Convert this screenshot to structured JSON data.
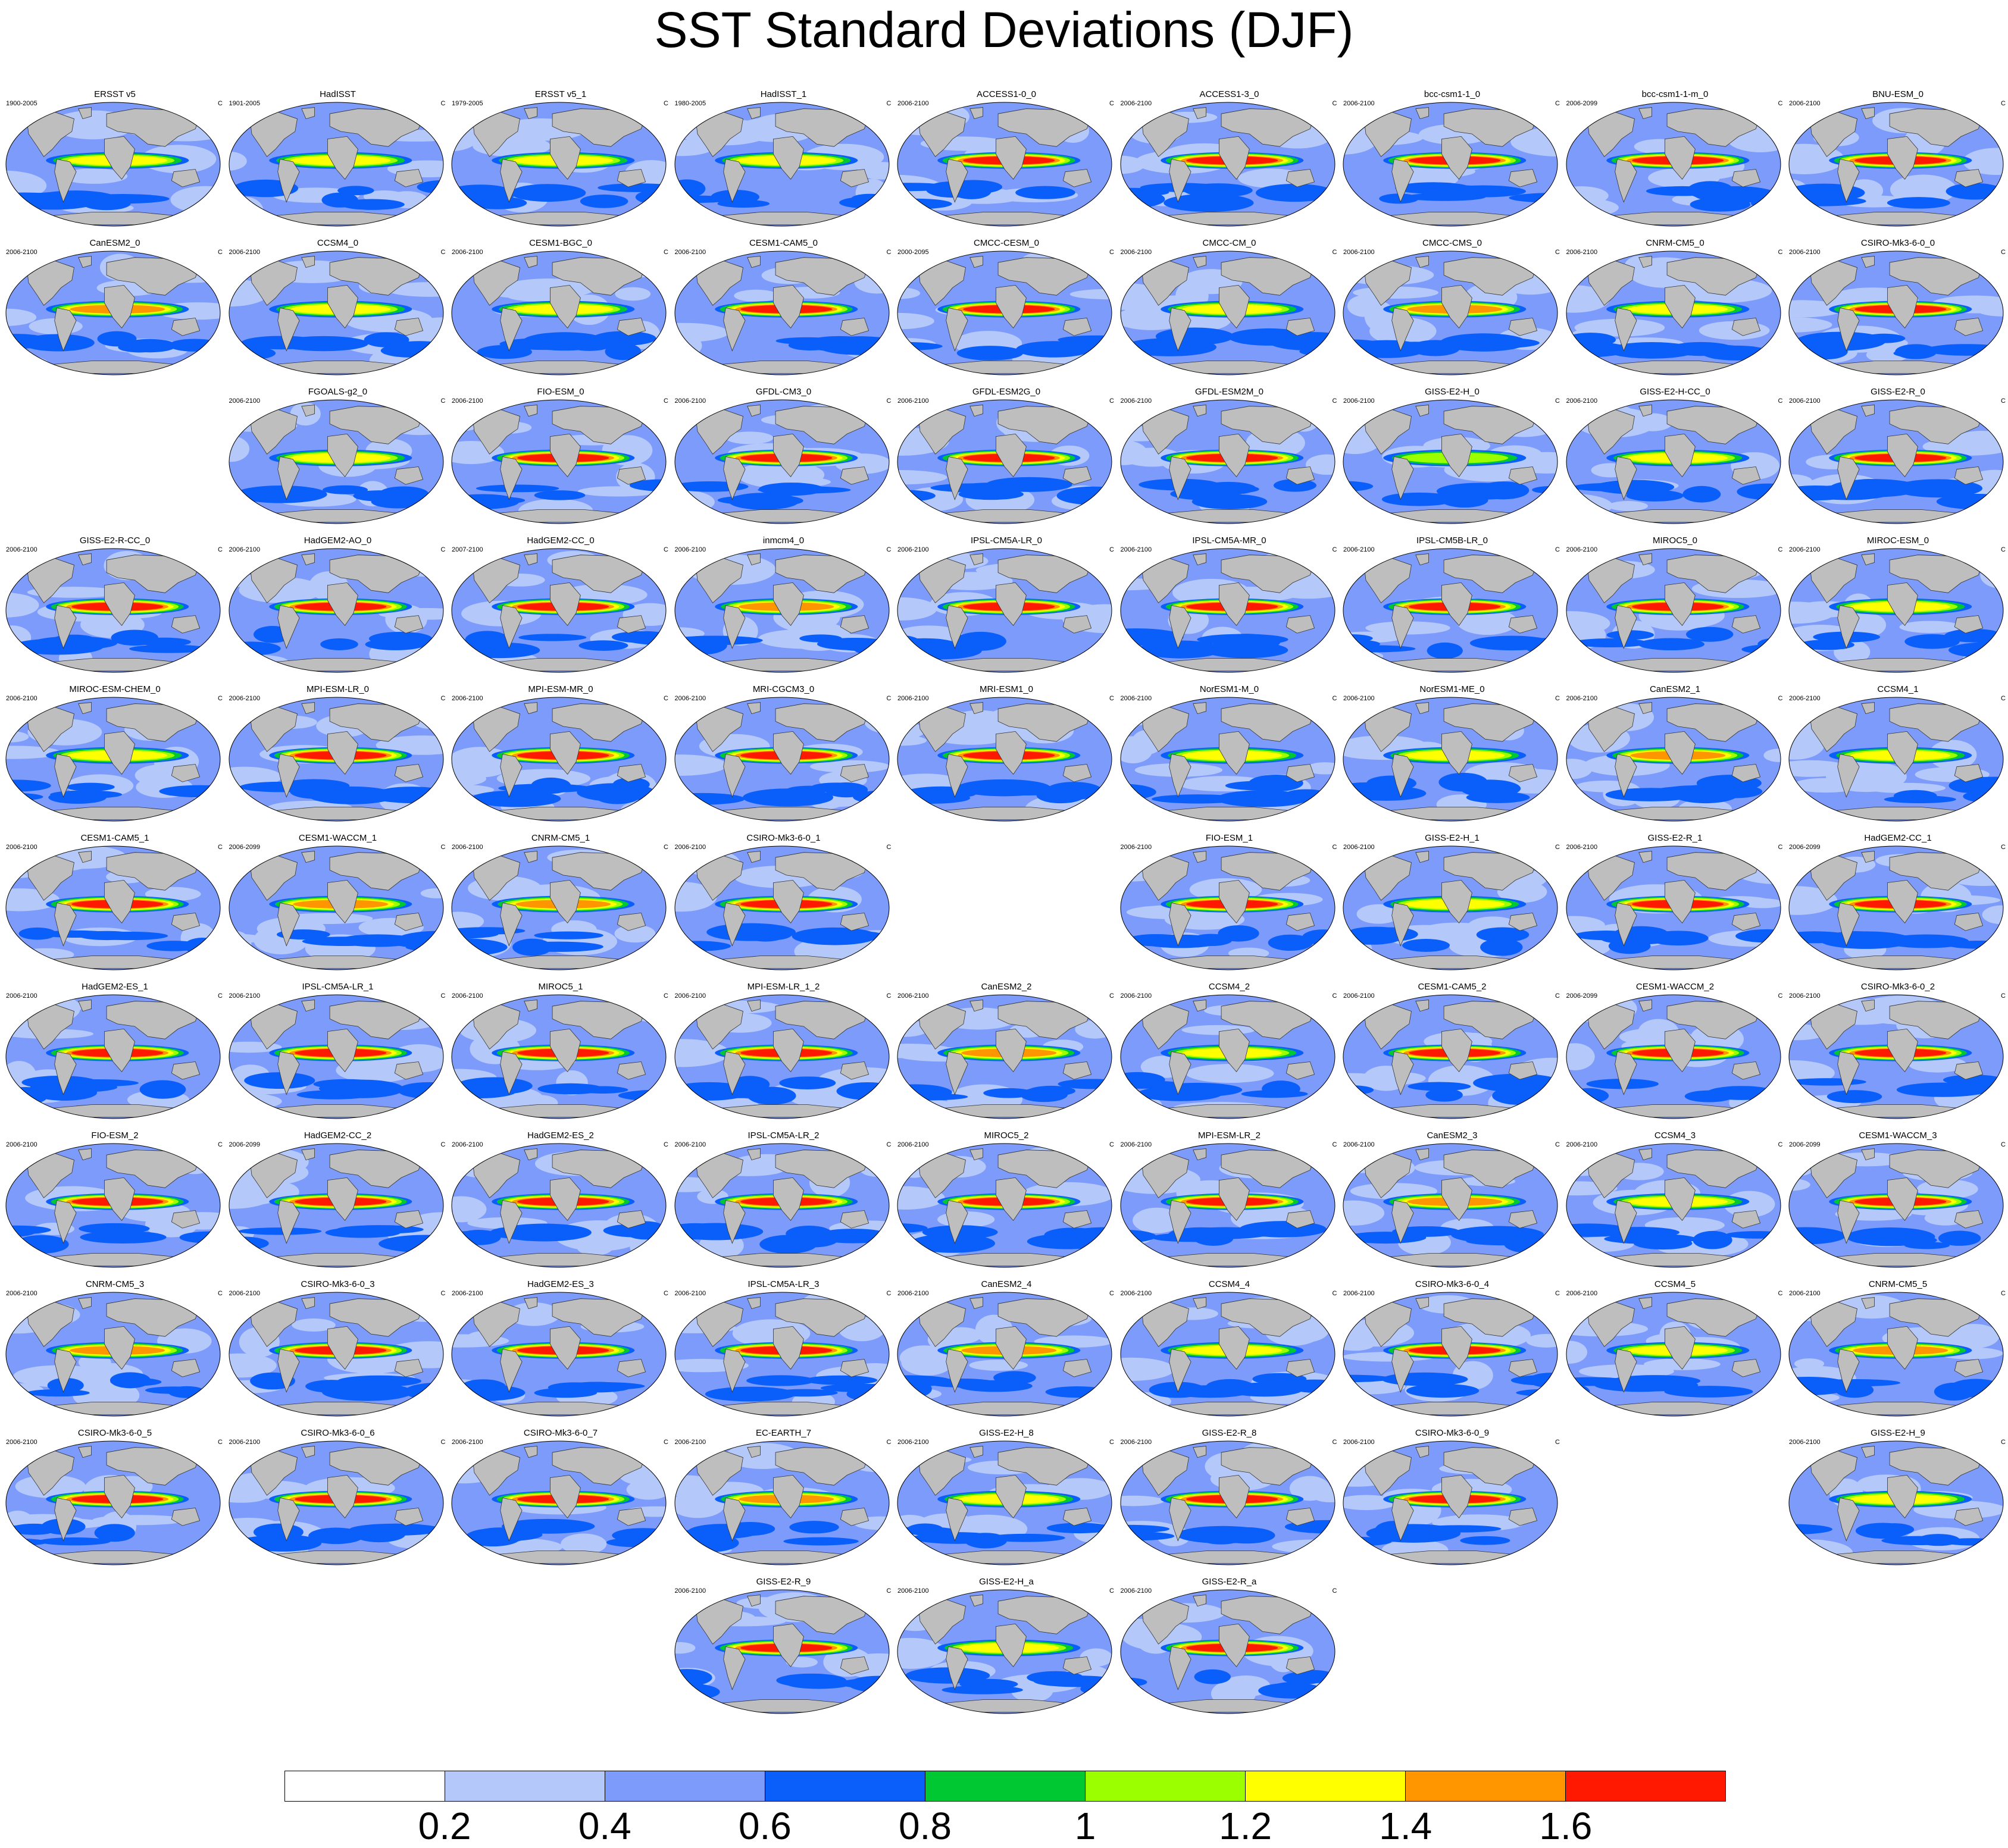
{
  "title": "SST Standard Deviations (DJF)",
  "unit_label": "C",
  "chart_data": {
    "type": "heatmap",
    "title": "SST Standard Deviations (DJF)",
    "panel_kind": "global SST standard deviation map",
    "colorbar": {
      "levels": [
        0.2,
        0.4,
        0.6,
        0.8,
        1,
        1.2,
        1.4,
        1.6
      ],
      "tick_labels": [
        "0.2",
        "0.4",
        "0.6",
        "0.8",
        "1",
        "1.2",
        "1.4",
        "1.6"
      ],
      "colors": [
        "#ffffff",
        "#b4c8fa",
        "#7d9bfa",
        "#0a5ffa",
        "#00c832",
        "#9bff00",
        "#ffff00",
        "#ff9600",
        "#ff1900"
      ]
    },
    "panels": [
      {
        "row": 0,
        "col": 0,
        "name": "ERSST v5",
        "years": "1900-2005",
        "peak": 1.2
      },
      {
        "row": 0,
        "col": 1,
        "name": "HadISST",
        "years": "1901-2005",
        "peak": 1.2
      },
      {
        "row": 0,
        "col": 2,
        "name": "ERSST v5_1",
        "years": "1979-2005",
        "peak": 1.2
      },
      {
        "row": 0,
        "col": 3,
        "name": "HadISST_1",
        "years": "1980-2005",
        "peak": 1.2
      },
      {
        "row": 0,
        "col": 4,
        "name": "ACCESS1-0_0",
        "years": "2006-2100",
        "peak": 1.6
      },
      {
        "row": 0,
        "col": 5,
        "name": "ACCESS1-3_0",
        "years": "2006-2100",
        "peak": 1.6
      },
      {
        "row": 0,
        "col": 6,
        "name": "bcc-csm1-1_0",
        "years": "2006-2100",
        "peak": 1.6
      },
      {
        "row": 0,
        "col": 7,
        "name": "bcc-csm1-1-m_0",
        "years": "2006-2099",
        "peak": 1.6
      },
      {
        "row": 0,
        "col": 8,
        "name": "BNU-ESM_0",
        "years": "2006-2100",
        "peak": 1.6
      },
      {
        "row": 1,
        "col": 0,
        "name": "CanESM2_0",
        "years": "2006-2100",
        "peak": 1.4
      },
      {
        "row": 1,
        "col": 1,
        "name": "CCSM4_0",
        "years": "2006-2100",
        "peak": 1.2
      },
      {
        "row": 1,
        "col": 2,
        "name": "CESM1-BGC_0",
        "years": "2006-2100",
        "peak": 1.2
      },
      {
        "row": 1,
        "col": 3,
        "name": "CESM1-CAM5_0",
        "years": "2006-2100",
        "peak": 1.6
      },
      {
        "row": 1,
        "col": 4,
        "name": "CMCC-CESM_0",
        "years": "2000-2095",
        "peak": 1.6
      },
      {
        "row": 1,
        "col": 5,
        "name": "CMCC-CM_0",
        "years": "2006-2100",
        "peak": 1.2
      },
      {
        "row": 1,
        "col": 6,
        "name": "CMCC-CMS_0",
        "years": "2006-2100",
        "peak": 1.4
      },
      {
        "row": 1,
        "col": 7,
        "name": "CNRM-CM5_0",
        "years": "2006-2100",
        "peak": 1.2
      },
      {
        "row": 1,
        "col": 8,
        "name": "CSIRO-Mk3-6-0_0",
        "years": "2006-2100",
        "peak": 1.6
      },
      {
        "row": 2,
        "col": 1,
        "name": "FGOALS-g2_0",
        "years": "2006-2100",
        "peak": 1.2
      },
      {
        "row": 2,
        "col": 2,
        "name": "FIO-ESM_0",
        "years": "2006-2100",
        "peak": 1.6
      },
      {
        "row": 2,
        "col": 3,
        "name": "GFDL-CM3_0",
        "years": "2006-2100",
        "peak": 1.6
      },
      {
        "row": 2,
        "col": 4,
        "name": "GFDL-ESM2G_0",
        "years": "2006-2100",
        "peak": 1.6
      },
      {
        "row": 2,
        "col": 5,
        "name": "GFDL-ESM2M_0",
        "years": "2006-2100",
        "peak": 1.6
      },
      {
        "row": 2,
        "col": 6,
        "name": "GISS-E2-H_0",
        "years": "2006-2100",
        "peak": 1.0
      },
      {
        "row": 2,
        "col": 7,
        "name": "GISS-E2-H-CC_0",
        "years": "2006-2100",
        "peak": 1.2
      },
      {
        "row": 2,
        "col": 8,
        "name": "GISS-E2-R_0",
        "years": "2006-2100",
        "peak": 1.6
      },
      {
        "row": 3,
        "col": 0,
        "name": "GISS-E2-R-CC_0",
        "years": "2006-2100",
        "peak": 1.6
      },
      {
        "row": 3,
        "col": 1,
        "name": "HadGEM2-AO_0",
        "years": "2006-2100",
        "peak": 1.6
      },
      {
        "row": 3,
        "col": 2,
        "name": "HadGEM2-CC_0",
        "years": "2007-2100",
        "peak": 1.6
      },
      {
        "row": 3,
        "col": 3,
        "name": "inmcm4_0",
        "years": "2006-2100",
        "peak": 1.4
      },
      {
        "row": 3,
        "col": 4,
        "name": "IPSL-CM5A-LR_0",
        "years": "2006-2100",
        "peak": 1.6
      },
      {
        "row": 3,
        "col": 5,
        "name": "IPSL-CM5A-MR_0",
        "years": "2006-2100",
        "peak": 1.6
      },
      {
        "row": 3,
        "col": 6,
        "name": "IPSL-CM5B-LR_0",
        "years": "2006-2100",
        "peak": 1.6
      },
      {
        "row": 3,
        "col": 7,
        "name": "MIROC5_0",
        "years": "2006-2100",
        "peak": 1.6
      },
      {
        "row": 3,
        "col": 8,
        "name": "MIROC-ESM_0",
        "years": "2006-2100",
        "peak": 1.2
      },
      {
        "row": 4,
        "col": 0,
        "name": "MIROC-ESM-CHEM_0",
        "years": "2006-2100",
        "peak": 1.2
      },
      {
        "row": 4,
        "col": 1,
        "name": "MPI-ESM-LR_0",
        "years": "2006-2100",
        "peak": 1.6
      },
      {
        "row": 4,
        "col": 2,
        "name": "MPI-ESM-MR_0",
        "years": "2006-2100",
        "peak": 1.6
      },
      {
        "row": 4,
        "col": 3,
        "name": "MRI-CGCM3_0",
        "years": "2006-2100",
        "peak": 1.6
      },
      {
        "row": 4,
        "col": 4,
        "name": "MRI-ESM1_0",
        "years": "2006-2100",
        "peak": 1.6
      },
      {
        "row": 4,
        "col": 5,
        "name": "NorESM1-M_0",
        "years": "2006-2100",
        "peak": 1.2
      },
      {
        "row": 4,
        "col": 6,
        "name": "NorESM1-ME_0",
        "years": "2006-2100",
        "peak": 1.2
      },
      {
        "row": 4,
        "col": 7,
        "name": "CanESM2_1",
        "years": "2006-2100",
        "peak": 1.4
      },
      {
        "row": 4,
        "col": 8,
        "name": "CCSM4_1",
        "years": "2006-2100",
        "peak": 1.2
      },
      {
        "row": 5,
        "col": 0,
        "name": "CESM1-CAM5_1",
        "years": "2006-2100",
        "peak": 1.6
      },
      {
        "row": 5,
        "col": 1,
        "name": "CESM1-WACCM_1",
        "years": "2006-2099",
        "peak": 1.4
      },
      {
        "row": 5,
        "col": 2,
        "name": "CNRM-CM5_1",
        "years": "2006-2100",
        "peak": 1.4
      },
      {
        "row": 5,
        "col": 3,
        "name": "CSIRO-Mk3-6-0_1",
        "years": "2006-2100",
        "peak": 1.6
      },
      {
        "row": 5,
        "col": 5,
        "name": "FIO-ESM_1",
        "years": "2006-2100",
        "peak": 1.6
      },
      {
        "row": 5,
        "col": 6,
        "name": "GISS-E2-H_1",
        "years": "2006-2100",
        "peak": 1.2
      },
      {
        "row": 5,
        "col": 7,
        "name": "GISS-E2-R_1",
        "years": "2006-2100",
        "peak": 1.6
      },
      {
        "row": 5,
        "col": 8,
        "name": "HadGEM2-CC_1",
        "years": "2006-2099",
        "peak": 1.6
      },
      {
        "row": 6,
        "col": 0,
        "name": "HadGEM2-ES_1",
        "years": "2006-2100",
        "peak": 1.6
      },
      {
        "row": 6,
        "col": 1,
        "name": "IPSL-CM5A-LR_1",
        "years": "2006-2100",
        "peak": 1.6
      },
      {
        "row": 6,
        "col": 2,
        "name": "MIROC5_1",
        "years": "2006-2100",
        "peak": 1.6
      },
      {
        "row": 6,
        "col": 3,
        "name": "MPI-ESM-LR_1_2",
        "years": "2006-2100",
        "peak": 1.6
      },
      {
        "row": 6,
        "col": 4,
        "name": "CanESM2_2",
        "years": "2006-2100",
        "peak": 1.4
      },
      {
        "row": 6,
        "col": 5,
        "name": "CCSM4_2",
        "years": "2006-2100",
        "peak": 1.2
      },
      {
        "row": 6,
        "col": 6,
        "name": "CESM1-CAM5_2",
        "years": "2006-2100",
        "peak": 1.6
      },
      {
        "row": 6,
        "col": 7,
        "name": "CESM1-WACCM_2",
        "years": "2006-2099",
        "peak": 1.6
      },
      {
        "row": 6,
        "col": 8,
        "name": "CSIRO-Mk3-6-0_2",
        "years": "2006-2100",
        "peak": 1.6
      },
      {
        "row": 7,
        "col": 0,
        "name": "FIO-ESM_2",
        "years": "2006-2100",
        "peak": 1.6
      },
      {
        "row": 7,
        "col": 1,
        "name": "HadGEM2-CC_2",
        "years": "2006-2099",
        "peak": 1.6
      },
      {
        "row": 7,
        "col": 2,
        "name": "HadGEM2-ES_2",
        "years": "2006-2100",
        "peak": 1.6
      },
      {
        "row": 7,
        "col": 3,
        "name": "IPSL-CM5A-LR_2",
        "years": "2006-2100",
        "peak": 1.6
      },
      {
        "row": 7,
        "col": 4,
        "name": "MIROC5_2",
        "years": "2006-2100",
        "peak": 1.6
      },
      {
        "row": 7,
        "col": 5,
        "name": "MPI-ESM-LR_2",
        "years": "2006-2100",
        "peak": 1.6
      },
      {
        "row": 7,
        "col": 6,
        "name": "CanESM2_3",
        "years": "2006-2100",
        "peak": 1.4
      },
      {
        "row": 7,
        "col": 7,
        "name": "CCSM4_3",
        "years": "2006-2100",
        "peak": 1.2
      },
      {
        "row": 7,
        "col": 8,
        "name": "CESM1-WACCM_3",
        "years": "2006-2099",
        "peak": 1.6
      },
      {
        "row": 8,
        "col": 0,
        "name": "CNRM-CM5_3",
        "years": "2006-2100",
        "peak": 1.4
      },
      {
        "row": 8,
        "col": 1,
        "name": "CSIRO-Mk3-6-0_3",
        "years": "2006-2100",
        "peak": 1.6
      },
      {
        "row": 8,
        "col": 2,
        "name": "HadGEM2-ES_3",
        "years": "2006-2100",
        "peak": 1.6
      },
      {
        "row": 8,
        "col": 3,
        "name": "IPSL-CM5A-LR_3",
        "years": "2006-2100",
        "peak": 1.6
      },
      {
        "row": 8,
        "col": 4,
        "name": "CanESM2_4",
        "years": "2006-2100",
        "peak": 1.4
      },
      {
        "row": 8,
        "col": 5,
        "name": "CCSM4_4",
        "years": "2006-2100",
        "peak": 1.2
      },
      {
        "row": 8,
        "col": 6,
        "name": "CSIRO-Mk3-6-0_4",
        "years": "2006-2100",
        "peak": 1.6
      },
      {
        "row": 8,
        "col": 7,
        "name": "CCSM4_5",
        "years": "2006-2100",
        "peak": 1.2
      },
      {
        "row": 8,
        "col": 8,
        "name": "CNRM-CM5_5",
        "years": "2006-2100",
        "peak": 1.4
      },
      {
        "row": 9,
        "col": 0,
        "name": "CSIRO-Mk3-6-0_5",
        "years": "2006-2100",
        "peak": 1.6
      },
      {
        "row": 9,
        "col": 1,
        "name": "CSIRO-Mk3-6-0_6",
        "years": "2006-2100",
        "peak": 1.6
      },
      {
        "row": 9,
        "col": 2,
        "name": "CSIRO-Mk3-6-0_7",
        "years": "2006-2100",
        "peak": 1.6
      },
      {
        "row": 9,
        "col": 3,
        "name": "EC-EARTH_7",
        "years": "2006-2100",
        "peak": 1.4
      },
      {
        "row": 9,
        "col": 4,
        "name": "GISS-E2-H_8",
        "years": "2006-2100",
        "peak": 1.2
      },
      {
        "row": 9,
        "col": 5,
        "name": "GISS-E2-R_8",
        "years": "2006-2100",
        "peak": 1.6
      },
      {
        "row": 9,
        "col": 6,
        "name": "CSIRO-Mk3-6-0_9",
        "years": "2006-2100",
        "peak": 1.6
      },
      {
        "row": 9,
        "col": 8,
        "name": "GISS-E2-H_9",
        "years": "2006-2100",
        "peak": 1.2
      },
      {
        "row": 10,
        "col": 3,
        "name": "GISS-E2-R_9",
        "years": "2006-2100",
        "peak": 1.6
      },
      {
        "row": 10,
        "col": 4,
        "name": "GISS-E2-H_a",
        "years": "2006-2100",
        "peak": 1.2
      },
      {
        "row": 10,
        "col": 5,
        "name": "GISS-E2-R_a",
        "years": "2006-2100",
        "peak": 1.6
      }
    ]
  }
}
